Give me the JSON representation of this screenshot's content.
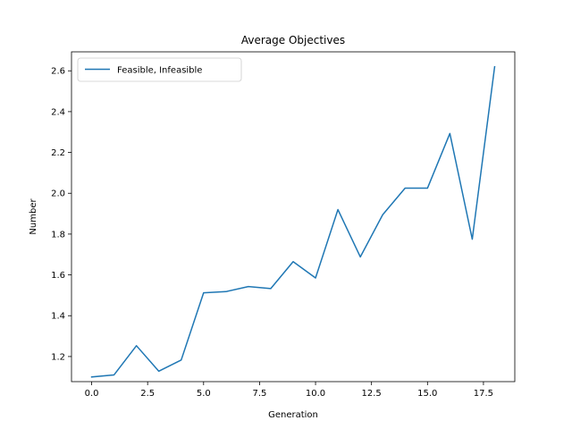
{
  "chart_data": {
    "type": "line",
    "title": "Average Objectives",
    "xlabel": "Generation",
    "ylabel": "Number",
    "xlim": [
      -0.9,
      18.9
    ],
    "ylim": [
      1.077,
      2.693
    ],
    "xticks": [
      0.0,
      2.5,
      5.0,
      7.5,
      10.0,
      12.5,
      15.0,
      17.5
    ],
    "xtick_labels": [
      "0.0",
      "2.5",
      "5.0",
      "7.5",
      "10.0",
      "12.5",
      "15.0",
      "17.5"
    ],
    "yticks": [
      1.2,
      1.4,
      1.6,
      1.8,
      2.0,
      2.2,
      2.4,
      2.6
    ],
    "ytick_labels": [
      "1.2",
      "1.4",
      "1.6",
      "1.8",
      "2.0",
      "2.2",
      "2.4",
      "2.6"
    ],
    "grid": false,
    "legend_position": "upper-left",
    "series": [
      {
        "name": "Feasible, Infeasible",
        "color": "#1f77b4",
        "x": [
          0,
          1,
          2,
          3,
          4,
          5,
          6,
          7,
          8,
          9,
          10,
          11,
          12,
          13,
          14,
          15,
          16,
          17,
          18
        ],
        "y": [
          1.1,
          1.11,
          1.253,
          1.128,
          1.183,
          1.512,
          1.518,
          1.543,
          1.533,
          1.665,
          1.585,
          1.92,
          1.688,
          1.895,
          2.025,
          2.025,
          2.293,
          1.775,
          2.62
        ]
      }
    ]
  }
}
